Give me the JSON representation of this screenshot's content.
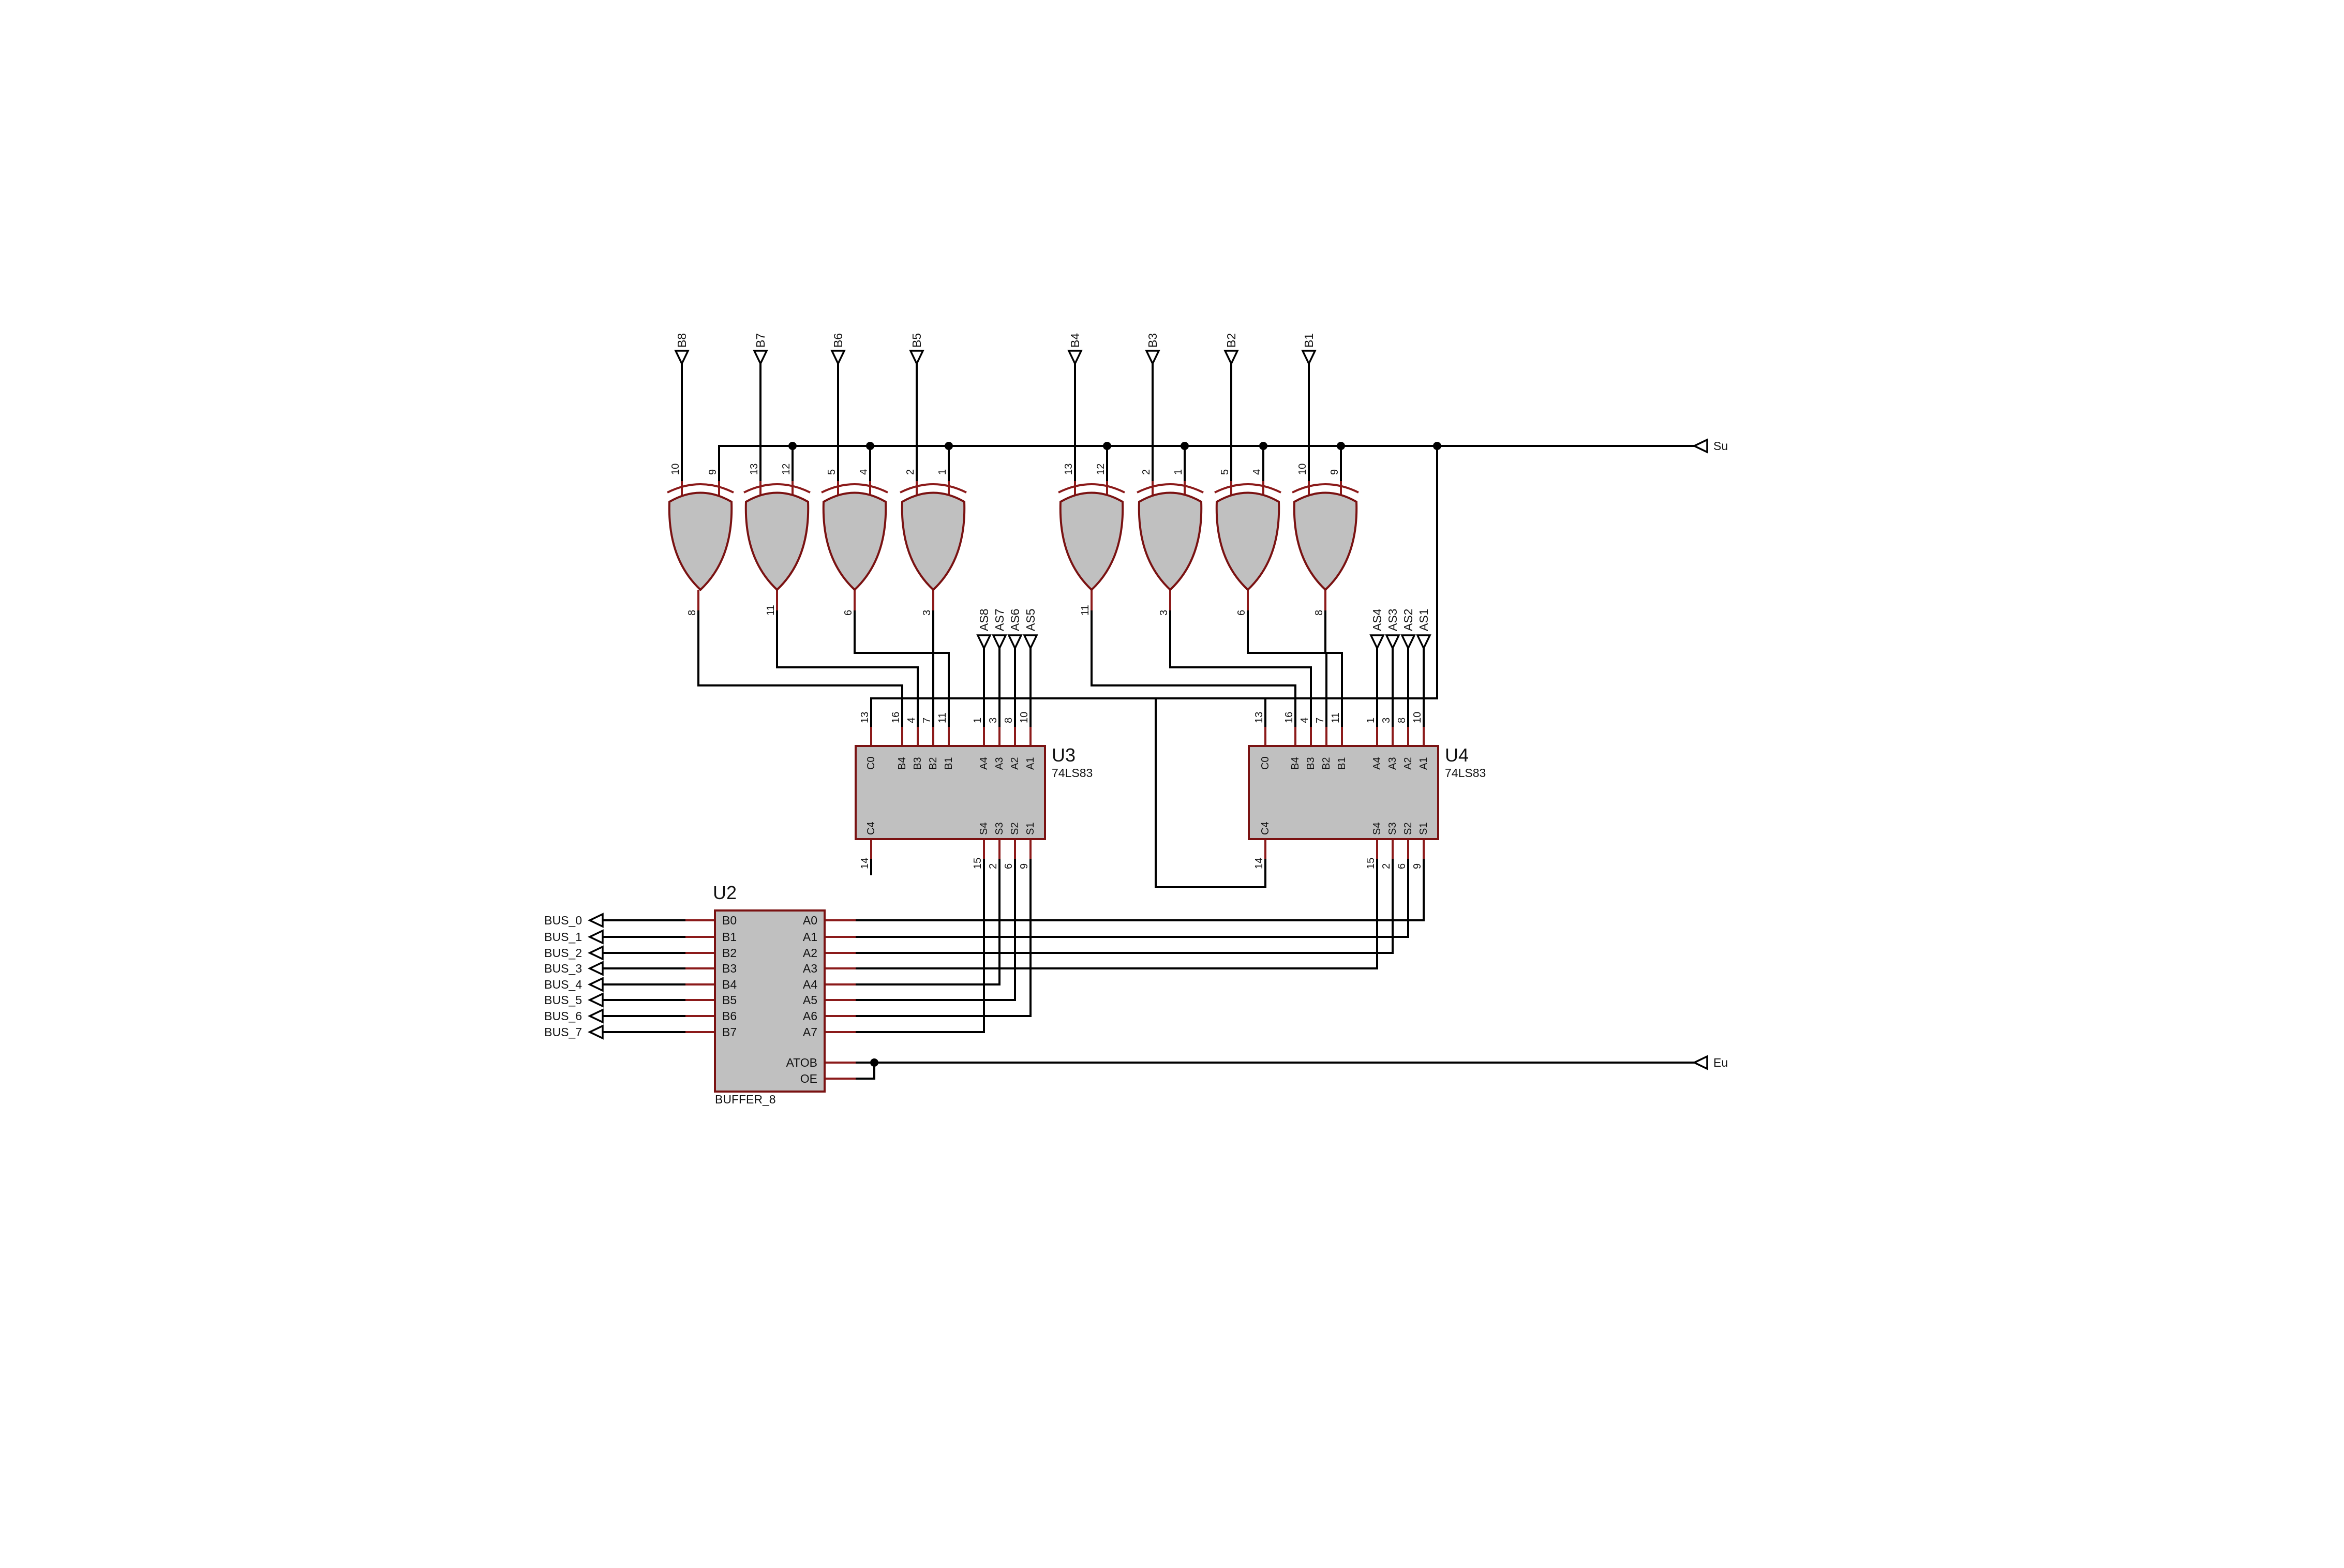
{
  "terminals": {
    "upper_inputs": [
      "B8",
      "B7",
      "B6",
      "B5",
      "B4",
      "B3",
      "B2",
      "B1"
    ],
    "su": "Su",
    "eu": "Eu",
    "u3_a_inputs": [
      "AS8",
      "AS7",
      "AS6",
      "AS5"
    ],
    "u4_a_inputs": [
      "AS4",
      "AS3",
      "AS2",
      "AS1"
    ],
    "bus_outputs": [
      "BUS_0",
      "BUS_1",
      "BUS_2",
      "BUS_3",
      "BUS_4",
      "BUS_5",
      "BUS_6",
      "BUS_7"
    ]
  },
  "gates_u3": [
    {
      "in_left": "10",
      "in_right": "9",
      "out": "8"
    },
    {
      "in_left": "13",
      "in_right": "12",
      "out": "11"
    },
    {
      "in_left": "5",
      "in_right": "4",
      "out": "6"
    },
    {
      "in_left": "2",
      "in_right": "1",
      "out": "3"
    }
  ],
  "gates_u4": [
    {
      "in_left": "13",
      "in_right": "12",
      "out": "11"
    },
    {
      "in_left": "2",
      "in_right": "1",
      "out": "3"
    },
    {
      "in_left": "5",
      "in_right": "4",
      "out": "6"
    },
    {
      "in_left": "10",
      "in_right": "9",
      "out": "8"
    }
  ],
  "adders": [
    {
      "ref": "U3",
      "part": "74LS83"
    },
    {
      "ref": "U4",
      "part": "74LS83"
    }
  ],
  "adder_top_pins": [
    {
      "name": "C0",
      "num": "13"
    },
    {
      "name": "B4",
      "num": "16"
    },
    {
      "name": "B3",
      "num": "4"
    },
    {
      "name": "B2",
      "num": "7"
    },
    {
      "name": "B1",
      "num": "11"
    },
    {
      "name": "A4",
      "num": "1"
    },
    {
      "name": "A3",
      "num": "3"
    },
    {
      "name": "A2",
      "num": "8"
    },
    {
      "name": "A1",
      "num": "10"
    }
  ],
  "adder_bottom_pins": [
    {
      "name": "C4",
      "num": "14"
    },
    {
      "name": "S4",
      "num": "15"
    },
    {
      "name": "S3",
      "num": "2"
    },
    {
      "name": "S2",
      "num": "6"
    },
    {
      "name": "S1",
      "num": "9"
    }
  ],
  "buffer": {
    "ref": "U2",
    "part": "BUFFER_8",
    "left_pins": [
      "B0",
      "B1",
      "B2",
      "B3",
      "B4",
      "B5",
      "B6",
      "B7"
    ],
    "right_pins": [
      "A0",
      "A1",
      "A2",
      "A3",
      "A4",
      "A5",
      "A6",
      "A7"
    ],
    "ctrl_pins": [
      "ATOB",
      "OE"
    ]
  },
  "colors": {
    "wire": "#000000",
    "component_outline": "#7a1212",
    "component_fill": "#c0c0c0",
    "background": "#ffffff"
  }
}
